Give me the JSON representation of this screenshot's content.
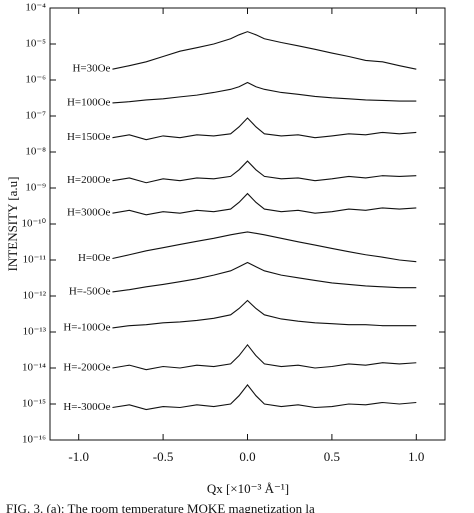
{
  "chart_data": {
    "type": "line",
    "log_y": true,
    "x_label": "Qx [×10⁻³ Å⁻¹]",
    "y_label": "INTENSITY [a.u]",
    "caption": "FIG. 3. (a): The room temperature MOKE magnetization la",
    "xlim": [
      -1.17,
      1.17
    ],
    "xticks": [
      {
        "value": -1,
        "label": "-1.0"
      },
      -0.5,
      {
        "value": 0,
        "label": "0.0"
      },
      0.5,
      {
        "value": 1,
        "label": "1.0"
      }
    ],
    "ylim": [
      1e-16,
      0.0001
    ],
    "yticks": [
      {
        "value": 1e-16,
        "label": "10⁻¹⁶"
      },
      {
        "value": 1e-15,
        "label": "10⁻¹⁵"
      },
      {
        "value": 1e-14,
        "label": "10⁻¹⁴"
      },
      {
        "value": 1e-13,
        "label": "10⁻¹³"
      },
      {
        "value": 1e-12,
        "label": "10⁻¹²"
      },
      {
        "value": 1e-11,
        "label": "10⁻¹¹"
      },
      {
        "value": 1e-10,
        "label": "10⁻¹⁰"
      },
      {
        "value": 1e-09,
        "label": "10⁻⁹"
      },
      {
        "value": 1e-08,
        "label": "10⁻⁸"
      },
      {
        "value": 1e-07,
        "label": "10⁻⁷"
      },
      {
        "value": 1e-06,
        "label": "10⁻⁶"
      },
      {
        "value": 1e-05,
        "label": "10⁻⁵"
      },
      {
        "value": 0.0001,
        "label": "10⁻⁴"
      }
    ],
    "x": [
      -0.8,
      -0.7,
      -0.6,
      -0.5,
      -0.4,
      -0.3,
      -0.2,
      -0.1,
      -0.05,
      0,
      0.05,
      0.1,
      0.2,
      0.3,
      0.4,
      0.5,
      0.6,
      0.7,
      0.8,
      0.9,
      1.0
    ],
    "series": [
      {
        "name": "H=30Oe",
        "color": "#111111",
        "values": [
          2e-06,
          2.5e-06,
          3.2e-06,
          4.5e-06,
          6.3e-06,
          7.9e-06,
          1e-05,
          1.4e-05,
          1.8e-05,
          2.2e-05,
          1.8e-05,
          1.4e-05,
          1.1e-05,
          8.9e-06,
          7.1e-06,
          5.6e-06,
          4.5e-06,
          3.5e-06,
          3.2e-06,
          2.5e-06,
          2e-06
        ]
      },
      {
        "name": "H=100Oe",
        "color": "#111111",
        "values": [
          2.3e-07,
          2.5e-07,
          2.8e-07,
          3e-07,
          3.4e-07,
          3.8e-07,
          4.5e-07,
          5.5e-07,
          6.5e-07,
          8.5e-07,
          6.5e-07,
          5.5e-07,
          4.5e-07,
          4e-07,
          3.5e-07,
          3.2e-07,
          3e-07,
          2.8e-07,
          2.7e-07,
          2.6e-07,
          2.6e-07
        ]
      },
      {
        "name": "H=150Oe",
        "color": "#111111",
        "values": [
          2.5e-08,
          3e-08,
          2.2e-08,
          2.8e-08,
          2.5e-08,
          3e-08,
          2.8e-08,
          3.2e-08,
          5e-08,
          8.8e-08,
          5e-08,
          3.2e-08,
          2.8e-08,
          3e-08,
          2.5e-08,
          2.8e-08,
          3.2e-08,
          3e-08,
          3.5e-08,
          3.2e-08,
          3.5e-08
        ]
      },
      {
        "name": "H=200Oe",
        "color": "#111111",
        "values": [
          1.6e-09,
          1.9e-09,
          1.4e-09,
          1.8e-09,
          1.6e-09,
          1.9e-09,
          1.8e-09,
          2.1e-09,
          3.2e-09,
          5.6e-09,
          3.2e-09,
          2.1e-09,
          1.8e-09,
          1.9e-09,
          1.6e-09,
          1.8e-09,
          2.1e-09,
          1.9e-09,
          2.2e-09,
          2.1e-09,
          2.2e-09
        ]
      },
      {
        "name": "H=300Oe",
        "color": "#111111",
        "values": [
          2e-10,
          2.4e-10,
          1.8e-10,
          2.2e-10,
          2e-10,
          2.4e-10,
          2.2e-10,
          2.6e-10,
          4e-10,
          7e-10,
          4e-10,
          2.6e-10,
          2.2e-10,
          2.4e-10,
          2e-10,
          2.2e-10,
          2.6e-10,
          2.4e-10,
          2.8e-10,
          2.6e-10,
          2.8e-10
        ]
      },
      {
        "name": "H=0Oe",
        "color": "#111111",
        "values": [
          1.1e-11,
          1.4e-11,
          1.8e-11,
          2.2e-11,
          2.7e-11,
          3.3e-11,
          4e-11,
          5e-11,
          5.5e-11,
          6e-11,
          5.5e-11,
          5e-11,
          4e-11,
          3.2e-11,
          2.6e-11,
          2.1e-11,
          1.7e-11,
          1.4e-11,
          1.2e-11,
          1e-11,
          9e-12
        ]
      },
      {
        "name": "H=-50Oe",
        "color": "#111111",
        "values": [
          1.3e-12,
          1.5e-12,
          1.8e-12,
          2.1e-12,
          2.5e-12,
          3e-12,
          3.8e-12,
          5e-12,
          6.5e-12,
          8.5e-12,
          6.5e-12,
          5e-12,
          3.8e-12,
          3.2e-12,
          2.7e-12,
          2.3e-12,
          2.1e-12,
          1.9e-12,
          1.8e-12,
          1.7e-12,
          1.7e-12
        ]
      },
      {
        "name": "H=-100Oe",
        "color": "#111111",
        "values": [
          1.3e-13,
          1.5e-13,
          1.6e-13,
          1.8e-13,
          1.9e-13,
          2.1e-13,
          2.4e-13,
          3e-13,
          4.5e-13,
          7.5e-13,
          4.5e-13,
          3e-13,
          2.3e-13,
          2e-13,
          1.8e-13,
          1.7e-13,
          1.6e-13,
          1.6e-13,
          1.5e-13,
          1.5e-13,
          1.5e-13
        ]
      },
      {
        "name": "H=-200Oe",
        "color": "#111111",
        "values": [
          1e-14,
          1.2e-14,
          9e-15,
          1.1e-14,
          1e-14,
          1.2e-14,
          1.1e-14,
          1.3e-14,
          2.2e-14,
          4.4e-14,
          2.2e-14,
          1.3e-14,
          1.1e-14,
          1.2e-14,
          1e-14,
          1.1e-14,
          1.3e-14,
          1.2e-14,
          1.4e-14,
          1.3e-14,
          1.4e-14
        ]
      },
      {
        "name": "H=-300Oe",
        "color": "#111111",
        "values": [
          8e-16,
          9.5e-16,
          7e-16,
          8.5e-16,
          8e-16,
          9.5e-16,
          8.5e-16,
          1e-15,
          1.7e-15,
          3.4e-15,
          1.7e-15,
          1e-15,
          8.5e-16,
          9.5e-16,
          8e-16,
          8.5e-16,
          1e-15,
          9.5e-16,
          1.1e-15,
          1e-15,
          1.1e-15
        ]
      }
    ]
  }
}
